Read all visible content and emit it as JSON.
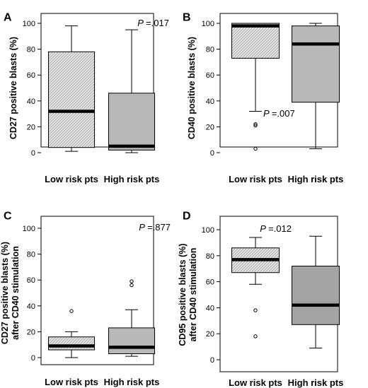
{
  "chart_data": [
    {
      "panel": "A",
      "type": "box",
      "ylabel": [
        "CD27 positive blasts (%)"
      ],
      "ylim": [
        0,
        100
      ],
      "yticks": [
        0,
        20,
        40,
        60,
        80,
        100
      ],
      "categories": [
        "Low risk pts",
        "High risk pts"
      ],
      "p_label": "P",
      "p_value": "=.017",
      "p_corner": "top-right",
      "series": [
        {
          "category": "Low risk pts",
          "fill": "hatched",
          "min": 1,
          "q1": 4,
          "median": 32,
          "q3": 78,
          "max": 98,
          "outliers": []
        },
        {
          "category": "High risk pts",
          "fill": "gray",
          "min": 0,
          "q1": 2,
          "median": 5,
          "q3": 46,
          "max": 95,
          "outliers": []
        }
      ]
    },
    {
      "panel": "B",
      "type": "box",
      "ylabel": [
        "CD40 positive blasts (%)"
      ],
      "ylim": [
        0,
        100
      ],
      "yticks": [
        0,
        20,
        40,
        60,
        80,
        100
      ],
      "categories": [
        "Low risk pts",
        "High risk pts"
      ],
      "p_label": "P",
      "p_value": "=.007",
      "p_corner": "middle",
      "series": [
        {
          "category": "Low risk pts",
          "fill": "hatched",
          "min": 32,
          "q1": 73,
          "median": 98,
          "q3": 100,
          "max": 100,
          "outliers": [
            21,
            22,
            3
          ]
        },
        {
          "category": "High risk pts",
          "fill": "gray",
          "min": 3,
          "q1": 39,
          "median": 84,
          "q3": 98,
          "max": 100,
          "outliers": []
        }
      ]
    },
    {
      "panel": "C",
      "type": "box",
      "ylabel": [
        "CD27 positive blasts (%)",
        "after CD40 stimulation"
      ],
      "ylim": [
        0,
        100
      ],
      "yticks": [
        0,
        20,
        40,
        60,
        80,
        100
      ],
      "categories": [
        "Low risk pts",
        "High risk pts"
      ],
      "p_label": "P",
      "p_value": "=.877",
      "p_corner": "top-right",
      "series": [
        {
          "category": "Low risk pts",
          "fill": "hatched",
          "min": 0,
          "q1": 6,
          "median": 9,
          "q3": 16,
          "max": 20,
          "outliers": [
            36
          ]
        },
        {
          "category": "High risk pts",
          "fill": "gray",
          "min": 1,
          "q1": 3,
          "median": 8,
          "q3": 23,
          "max": 37,
          "outliers": [
            56,
            59
          ]
        }
      ]
    },
    {
      "panel": "D",
      "type": "box",
      "ylabel": [
        "CD95 positive blasts (%)",
        "after CD40 stimulation"
      ],
      "ylim": [
        0,
        100
      ],
      "yticks": [
        0,
        20,
        40,
        60,
        80,
        100
      ],
      "categories": [
        "Low risk pts",
        "High risk pts"
      ],
      "p_label": "P",
      "p_value": "=.012",
      "p_corner": "top-right",
      "series": [
        {
          "category": "Low risk pts",
          "fill": "hatched",
          "min": 58,
          "q1": 67,
          "median": 77,
          "q3": 86,
          "max": 94,
          "outliers": [
            38,
            18
          ]
        },
        {
          "category": "High risk pts",
          "fill": "darkgray",
          "min": 9,
          "q1": 27,
          "median": 42,
          "q3": 72,
          "max": 95,
          "outliers": []
        }
      ]
    }
  ],
  "colors": {
    "gray_fill": "#b8b8b8",
    "darkgray_fill": "#a3a3a3",
    "hatch_bg": "#e4e4e4",
    "hatch_line": "#9a9a9a",
    "median": "#000000",
    "frame": "#000000"
  }
}
